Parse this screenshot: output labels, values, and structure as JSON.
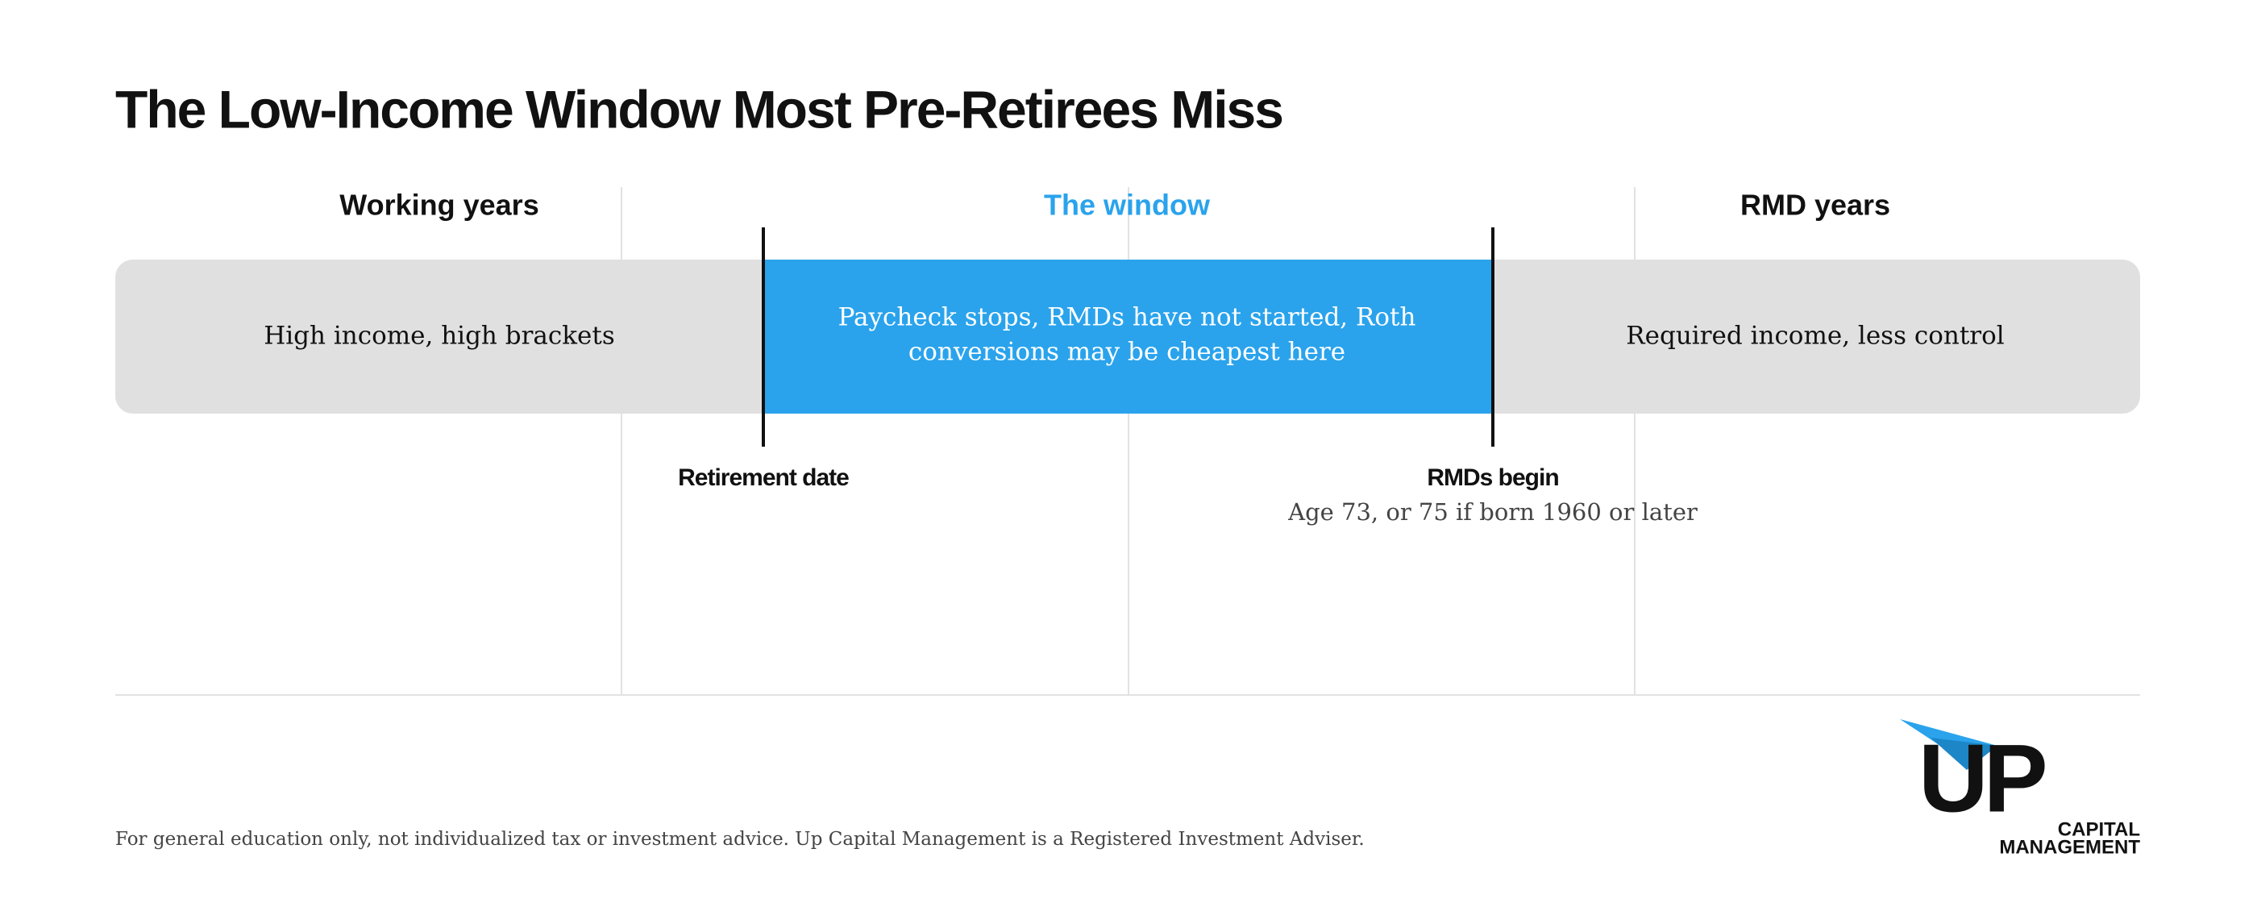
{
  "title": "The Low-Income Window Most Pre-Retirees Miss",
  "phases": [
    {
      "header": "Working years",
      "lines": [
        "High income, high brackets"
      ]
    },
    {
      "header": "The window",
      "lines": [
        "Paycheck stops, RMDs have not started, Roth",
        "conversions may be cheapest here"
      ]
    },
    {
      "header": "RMD years",
      "lines": [
        "Required income, less control"
      ]
    }
  ],
  "markers": [
    {
      "label": "Retirement date"
    },
    {
      "label": "RMDs begin",
      "note": "Age 73, or 75 if born 1960 or later"
    }
  ],
  "footer": "For general education only, not individualized tax or investment advice. Up Capital Management is a Registered Investment Adviser.",
  "logo": {
    "mark": "UP",
    "line1": "CAPITAL",
    "line2": "MANAGEMENT"
  }
}
